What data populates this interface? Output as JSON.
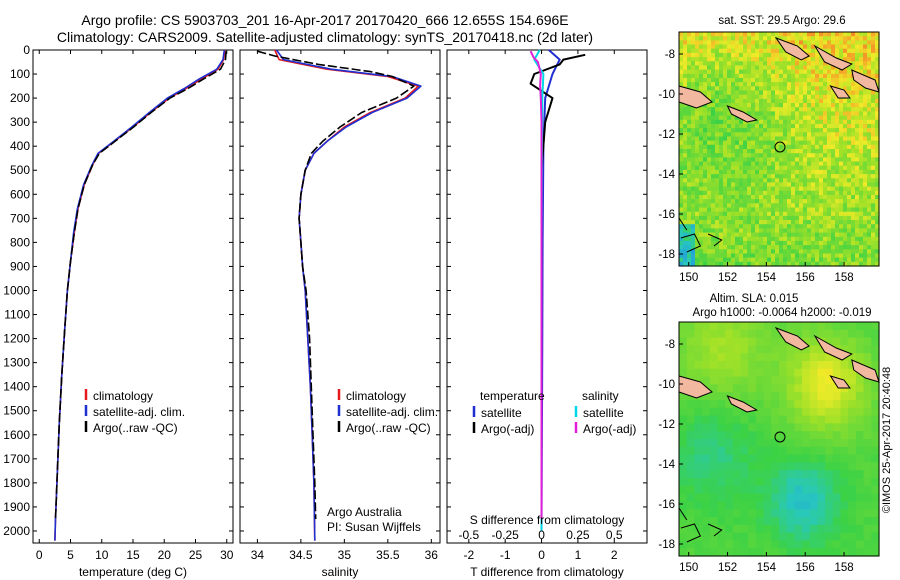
{
  "titles": {
    "line1": "Argo profile: CS 5903703_201 16-Apr-2017 20170420_666 12.655S 154.696E",
    "line2": "Climatology: CARS2009. Satellite-adjusted climatology: synTS_20170418.nc (2d later)"
  },
  "depth_ticks": [
    0,
    100,
    200,
    300,
    400,
    500,
    600,
    700,
    800,
    900,
    1000,
    1100,
    1200,
    1300,
    1400,
    1500,
    1600,
    1700,
    1800,
    1900,
    2000
  ],
  "colors": {
    "climatology": "#e41a1c",
    "satellite": "#1f2fd0",
    "argo": "#000000",
    "sat_s": "#00d8e8",
    "argo_s": "#e21fd8"
  },
  "chart_data": [
    {
      "type": "line",
      "xlabel": "temperature (deg C)",
      "ylabel": "",
      "xlim": [
        -1,
        31
      ],
      "ylim": [
        2050,
        0
      ],
      "xticks": [
        0,
        5,
        10,
        15,
        20,
        25,
        30
      ],
      "legend_placement": "lower-left",
      "legend": [
        "climatology",
        "satellite-adj. clim.",
        "Argo(..raw -QC)"
      ],
      "series": [
        {
          "name": "climatology",
          "color_key": "climatology",
          "points": [
            [
              29.7,
              0
            ],
            [
              29.5,
              40
            ],
            [
              28.6,
              80
            ],
            [
              26.0,
              120
            ],
            [
              23.5,
              160
            ],
            [
              20.8,
              200
            ],
            [
              17.8,
              260
            ],
            [
              15.0,
              320
            ],
            [
              12.0,
              380
            ],
            [
              9.5,
              430
            ],
            [
              8.5,
              480
            ],
            [
              7.2,
              560
            ],
            [
              6.2,
              660
            ],
            [
              5.6,
              760
            ],
            [
              5.0,
              880
            ],
            [
              4.5,
              1000
            ],
            [
              4.1,
              1150
            ],
            [
              3.6,
              1350
            ],
            [
              3.2,
              1550
            ],
            [
              2.9,
              1750
            ],
            [
              2.6,
              1950
            ],
            [
              2.5,
              2040
            ]
          ]
        },
        {
          "name": "satellite-adj. clim.",
          "color_key": "satellite",
          "points": [
            [
              29.6,
              0
            ],
            [
              29.4,
              40
            ],
            [
              28.4,
              80
            ],
            [
              25.6,
              120
            ],
            [
              23.2,
              160
            ],
            [
              20.5,
              200
            ],
            [
              17.6,
              260
            ],
            [
              14.8,
              320
            ],
            [
              11.9,
              380
            ],
            [
              9.4,
              430
            ],
            [
              8.4,
              480
            ],
            [
              7.1,
              560
            ],
            [
              6.1,
              660
            ],
            [
              5.5,
              760
            ],
            [
              5.0,
              880
            ],
            [
              4.5,
              1000
            ],
            [
              4.1,
              1150
            ],
            [
              3.6,
              1350
            ],
            [
              3.2,
              1550
            ],
            [
              2.9,
              1750
            ],
            [
              2.6,
              1950
            ],
            [
              2.5,
              2040
            ]
          ]
        },
        {
          "name": "Argo(..raw -QC)",
          "color_key": "argo",
          "points": [
            [
              29.9,
              5
            ],
            [
              29.8,
              40
            ],
            [
              29.0,
              80
            ],
            [
              26.3,
              120
            ],
            [
              23.8,
              160
            ],
            [
              20.9,
              200
            ],
            [
              17.9,
              260
            ],
            [
              15.1,
              320
            ],
            [
              12.1,
              380
            ],
            [
              9.6,
              430
            ],
            [
              8.5,
              480
            ],
            [
              7.2,
              560
            ],
            [
              6.2,
              660
            ],
            [
              5.6,
              760
            ],
            [
              5.0,
              880
            ],
            [
              4.5,
              1000
            ],
            [
              4.1,
              1150
            ],
            [
              3.6,
              1350
            ],
            [
              3.2,
              1550
            ],
            [
              2.9,
              1750
            ],
            [
              2.6,
              1950
            ]
          ]
        }
      ]
    },
    {
      "type": "line",
      "xlabel": "salinity",
      "ylabel": "",
      "xlim": [
        33.8,
        36.1
      ],
      "ylim": [
        2050,
        0
      ],
      "xticks": [
        34,
        34.5,
        35,
        35.5,
        36
      ],
      "xtick_labels": [
        "34",
        "34.5",
        "35",
        "35.5",
        "36"
      ],
      "legend_placement": "lower-left",
      "legend": [
        "climatology",
        "satellite-adj. clim.",
        "Argo(..raw -QC)"
      ],
      "annotations": [
        "Argo Australia",
        "PI: Susan Wijffels"
      ],
      "series": [
        {
          "name": "climatology",
          "color_key": "climatology",
          "points": [
            [
              34.2,
              0
            ],
            [
              34.25,
              40
            ],
            [
              34.8,
              80
            ],
            [
              35.5,
              110
            ],
            [
              35.85,
              150
            ],
            [
              35.7,
              200
            ],
            [
              35.3,
              260
            ],
            [
              35.0,
              320
            ],
            [
              34.8,
              380
            ],
            [
              34.65,
              430
            ],
            [
              34.55,
              500
            ],
            [
              34.5,
              600
            ],
            [
              34.48,
              700
            ],
            [
              34.5,
              800
            ],
            [
              34.52,
              900
            ],
            [
              34.55,
              1000
            ],
            [
              34.58,
              1200
            ],
            [
              34.61,
              1400
            ],
            [
              34.63,
              1600
            ],
            [
              34.65,
              1800
            ],
            [
              34.66,
              2040
            ]
          ]
        },
        {
          "name": "satellite-adj. clim.",
          "color_key": "satellite",
          "points": [
            [
              34.22,
              0
            ],
            [
              34.3,
              40
            ],
            [
              34.85,
              80
            ],
            [
              35.55,
              110
            ],
            [
              35.88,
              150
            ],
            [
              35.72,
              200
            ],
            [
              35.32,
              260
            ],
            [
              35.02,
              320
            ],
            [
              34.8,
              380
            ],
            [
              34.65,
              430
            ],
            [
              34.55,
              500
            ],
            [
              34.5,
              600
            ],
            [
              34.48,
              700
            ],
            [
              34.5,
              800
            ],
            [
              34.52,
              900
            ],
            [
              34.55,
              1000
            ],
            [
              34.58,
              1200
            ],
            [
              34.61,
              1400
            ],
            [
              34.63,
              1600
            ],
            [
              34.65,
              1800
            ],
            [
              34.66,
              2040
            ]
          ]
        },
        {
          "name": "Argo(..raw -QC)",
          "color_key": "argo",
          "points": [
            [
              34.0,
              5
            ],
            [
              34.2,
              25
            ],
            [
              34.7,
              60
            ],
            [
              35.3,
              90
            ],
            [
              35.55,
              110
            ],
            [
              35.8,
              150
            ],
            [
              35.6,
              200
            ],
            [
              35.2,
              260
            ],
            [
              34.95,
              320
            ],
            [
              34.75,
              380
            ],
            [
              34.62,
              430
            ],
            [
              34.55,
              500
            ],
            [
              34.5,
              600
            ],
            [
              34.48,
              700
            ],
            [
              34.5,
              800
            ],
            [
              34.52,
              900
            ],
            [
              34.56,
              1000
            ],
            [
              34.6,
              1200
            ],
            [
              34.62,
              1400
            ],
            [
              34.64,
              1600
            ],
            [
              34.66,
              1800
            ],
            [
              34.67,
              1950
            ]
          ]
        }
      ]
    },
    {
      "type": "line",
      "xlabel": "T difference from climatology",
      "xlabel2": "S difference from climatology",
      "ylabel": "",
      "xlim": [
        -2.6,
        2.9
      ],
      "ylim": [
        2050,
        0
      ],
      "xticks": [
        -2,
        -1,
        0,
        1,
        2
      ],
      "top_xticks": [
        -0.5,
        -0.25,
        0,
        0.25,
        0.5
      ],
      "top_xtick_labels": [
        "-0.5",
        "-0.25",
        "0",
        "0.25",
        "0.5"
      ],
      "legend_placement": "lower-left",
      "legend_headers": [
        "temperature",
        "salinity"
      ],
      "legend": [
        "satellite",
        "Argo(-adj)",
        "satellite",
        "Argo(-adj)"
      ],
      "series": [
        {
          "name": "temperature satellite",
          "color_key": "satellite",
          "points": [
            [
              0.2,
              0
            ],
            [
              0.5,
              40
            ],
            [
              0.3,
              100
            ],
            [
              0.1,
              200
            ],
            [
              0.05,
              400
            ],
            [
              0.03,
              800
            ],
            [
              0.02,
              1200
            ],
            [
              0.01,
              1600
            ],
            [
              0,
              2000
            ]
          ]
        },
        {
          "name": "temperature Argo(-adj)",
          "color_key": "argo",
          "points": [
            [
              1.2,
              20
            ],
            [
              0.6,
              40
            ],
            [
              0.5,
              60
            ],
            [
              -0.2,
              100
            ],
            [
              -0.3,
              140
            ],
            [
              0.1,
              180
            ],
            [
              0.3,
              200
            ],
            [
              0.1,
              300
            ],
            [
              0,
              500
            ],
            [
              0,
              800
            ],
            [
              0,
              1200
            ],
            [
              0,
              1600
            ],
            [
              0,
              1950
            ]
          ]
        },
        {
          "name": "salinity satellite",
          "color_key": "sat_s",
          "points": [
            [
              -0.05,
              0
            ],
            [
              -0.2,
              40
            ],
            [
              0.05,
              100
            ],
            [
              0.02,
              200
            ],
            [
              0.01,
              400
            ],
            [
              0,
              800
            ],
            [
              0,
              1200
            ],
            [
              0,
              1600
            ],
            [
              0,
              2000
            ]
          ]
        },
        {
          "name": "salinity Argo(-adj)",
          "color_key": "argo_s",
          "points": [
            [
              -0.3,
              5
            ],
            [
              -0.22,
              30
            ],
            [
              -0.1,
              50
            ],
            [
              -0.05,
              80
            ],
            [
              -0.02,
              100
            ],
            [
              -0.04,
              150
            ],
            [
              -0.02,
              200
            ],
            [
              0,
              300
            ],
            [
              0,
              400
            ],
            [
              0,
              500
            ],
            [
              0,
              600
            ],
            [
              0,
              800
            ],
            [
              0,
              1200
            ],
            [
              0,
              1600
            ],
            [
              0,
              1950
            ]
          ]
        }
      ]
    },
    {
      "type": "heatmap",
      "title": "sat. SST: 29.5 Argo: 29.6",
      "xlim": [
        149.5,
        159.8
      ],
      "ylim": [
        -18.6,
        -6.9
      ],
      "xticks": [
        150,
        152,
        154,
        156,
        158
      ],
      "yticks": [
        -8,
        -10,
        -12,
        -14,
        -16,
        -18
      ],
      "marker": [
        154.7,
        -12.65
      ]
    },
    {
      "type": "heatmap",
      "title": "Altim. SLA: 0.015",
      "subtitle": "Argo h1000: -0.0064 h2000: -0.019",
      "xlim": [
        149.5,
        159.8
      ],
      "ylim": [
        -18.6,
        -6.9
      ],
      "xticks": [
        150,
        152,
        154,
        156,
        158
      ],
      "yticks": [
        -8,
        -10,
        -12,
        -14,
        -16,
        -18
      ],
      "marker": [
        154.7,
        -12.65
      ]
    }
  ],
  "side_text": "©IMOS 25-Apr-2017 20:40:48"
}
